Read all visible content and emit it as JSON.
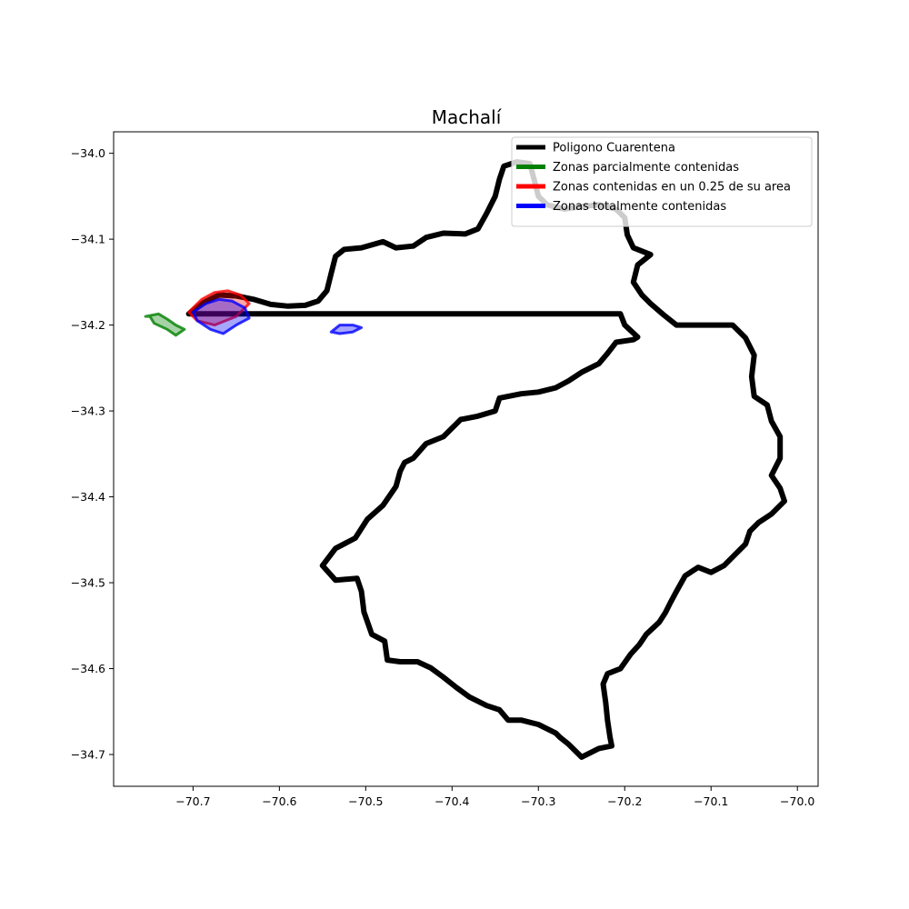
{
  "chart_data": {
    "type": "map",
    "title": "Machalí",
    "xlabel": "",
    "ylabel": "",
    "xlim": [
      -70.792,
      -69.976
    ],
    "ylim": [
      -34.737,
      -33.975
    ],
    "xticks": [
      -70.7,
      -70.6,
      -70.5,
      -70.4,
      -70.3,
      -70.2,
      -70.1,
      -70.0
    ],
    "xtick_labels": [
      "−70.7",
      "−70.6",
      "−70.5",
      "−70.4",
      "−70.3",
      "−70.2",
      "−70.1",
      "−70.0"
    ],
    "yticks": [
      -34.0,
      -34.1,
      -34.2,
      -34.3,
      -34.4,
      -34.5,
      -34.6,
      -34.7
    ],
    "ytick_labels": [
      "−34.0",
      "−34.1",
      "−34.2",
      "−34.3",
      "−34.4",
      "−34.5",
      "−34.6",
      "−34.7"
    ],
    "grid": false,
    "legend_position": "top-right",
    "legend": [
      {
        "label": "Poligono Cuarentena",
        "color": "#000000"
      },
      {
        "label": "Zonas parcialmente contenidas",
        "color": "#008000"
      },
      {
        "label": "Zonas contenidas en un 0.25 de su area",
        "color": "#ff0000"
      },
      {
        "label": "Zonas totalmente contenidas",
        "color": "#0000ff"
      }
    ],
    "series": [
      {
        "name": "Poligono Cuarentena",
        "color": "#000000",
        "type": "polygon",
        "lonlat": [
          [
            -70.705,
            -34.187
          ],
          [
            -70.69,
            -34.175
          ],
          [
            -70.67,
            -34.165
          ],
          [
            -70.65,
            -34.166
          ],
          [
            -70.63,
            -34.17
          ],
          [
            -70.61,
            -34.176
          ],
          [
            -70.59,
            -34.178
          ],
          [
            -70.57,
            -34.177
          ],
          [
            -70.555,
            -34.172
          ],
          [
            -70.545,
            -34.16
          ],
          [
            -70.54,
            -34.14
          ],
          [
            -70.535,
            -34.12
          ],
          [
            -70.525,
            -34.112
          ],
          [
            -70.505,
            -34.11
          ],
          [
            -70.48,
            -34.103
          ],
          [
            -70.465,
            -34.11
          ],
          [
            -70.445,
            -34.108
          ],
          [
            -70.43,
            -34.098
          ],
          [
            -70.41,
            -34.093
          ],
          [
            -70.385,
            -34.094
          ],
          [
            -70.37,
            -34.088
          ],
          [
            -70.36,
            -34.07
          ],
          [
            -70.35,
            -34.05
          ],
          [
            -70.345,
            -34.03
          ],
          [
            -70.34,
            -34.015
          ],
          [
            -70.325,
            -34.01
          ],
          [
            -70.31,
            -34.012
          ],
          [
            -70.305,
            -34.03
          ],
          [
            -70.3,
            -34.05
          ],
          [
            -70.29,
            -34.06
          ],
          [
            -70.27,
            -34.065
          ],
          [
            -70.25,
            -34.062
          ],
          [
            -70.23,
            -34.06
          ],
          [
            -70.21,
            -34.065
          ],
          [
            -70.2,
            -34.075
          ],
          [
            -70.197,
            -34.095
          ],
          [
            -70.19,
            -34.11
          ],
          [
            -70.17,
            -34.118
          ],
          [
            -70.185,
            -34.13
          ],
          [
            -70.19,
            -34.15
          ],
          [
            -70.18,
            -34.165
          ],
          [
            -70.17,
            -34.175
          ],
          [
            -70.155,
            -34.188
          ],
          [
            -70.14,
            -34.2
          ],
          [
            -70.115,
            -34.2
          ],
          [
            -70.095,
            -34.2
          ],
          [
            -70.075,
            -34.2
          ],
          [
            -70.06,
            -34.215
          ],
          [
            -70.05,
            -34.235
          ],
          [
            -70.053,
            -34.26
          ],
          [
            -70.05,
            -34.283
          ],
          [
            -70.035,
            -34.293
          ],
          [
            -70.03,
            -34.312
          ],
          [
            -70.02,
            -34.33
          ],
          [
            -70.02,
            -34.355
          ],
          [
            -70.03,
            -34.375
          ],
          [
            -70.02,
            -34.39
          ],
          [
            -70.015,
            -34.405
          ],
          [
            -70.03,
            -34.42
          ],
          [
            -70.045,
            -34.43
          ],
          [
            -70.055,
            -34.44
          ],
          [
            -70.06,
            -34.455
          ],
          [
            -70.07,
            -34.465
          ],
          [
            -70.085,
            -34.48
          ],
          [
            -70.1,
            -34.488
          ],
          [
            -70.115,
            -34.482
          ],
          [
            -70.13,
            -34.492
          ],
          [
            -70.14,
            -34.51
          ],
          [
            -70.147,
            -34.523
          ],
          [
            -70.153,
            -34.535
          ],
          [
            -70.16,
            -34.546
          ],
          [
            -70.175,
            -34.56
          ],
          [
            -70.183,
            -34.572
          ],
          [
            -70.193,
            -34.583
          ],
          [
            -70.205,
            -34.6
          ],
          [
            -70.22,
            -34.606
          ],
          [
            -70.225,
            -34.618
          ],
          [
            -70.222,
            -34.64
          ],
          [
            -70.22,
            -34.66
          ],
          [
            -70.217,
            -34.68
          ],
          [
            -70.215,
            -34.69
          ],
          [
            -70.23,
            -34.693
          ],
          [
            -70.25,
            -34.703
          ],
          [
            -70.255,
            -34.698
          ],
          [
            -70.265,
            -34.688
          ],
          [
            -70.275,
            -34.68
          ],
          [
            -70.28,
            -34.675
          ],
          [
            -70.3,
            -34.665
          ],
          [
            -70.32,
            -34.66
          ],
          [
            -70.335,
            -34.66
          ],
          [
            -70.345,
            -34.648
          ],
          [
            -70.36,
            -34.643
          ],
          [
            -70.38,
            -34.633
          ],
          [
            -70.395,
            -34.622
          ],
          [
            -70.41,
            -34.61
          ],
          [
            -70.425,
            -34.599
          ],
          [
            -70.44,
            -34.592
          ],
          [
            -70.46,
            -34.592
          ],
          [
            -70.475,
            -34.59
          ],
          [
            -70.478,
            -34.568
          ],
          [
            -70.493,
            -34.56
          ],
          [
            -70.502,
            -34.534
          ],
          [
            -70.505,
            -34.51
          ],
          [
            -70.51,
            -34.495
          ],
          [
            -70.535,
            -34.497
          ],
          [
            -70.55,
            -34.48
          ],
          [
            -70.535,
            -34.46
          ],
          [
            -70.512,
            -34.448
          ],
          [
            -70.498,
            -34.426
          ],
          [
            -70.48,
            -34.41
          ],
          [
            -70.465,
            -34.388
          ],
          [
            -70.46,
            -34.37
          ],
          [
            -70.455,
            -34.36
          ],
          [
            -70.445,
            -34.355
          ],
          [
            -70.43,
            -34.338
          ],
          [
            -70.41,
            -34.33
          ],
          [
            -70.39,
            -34.31
          ],
          [
            -70.37,
            -34.306
          ],
          [
            -70.35,
            -34.3
          ],
          [
            -70.345,
            -34.285
          ],
          [
            -70.32,
            -34.28
          ],
          [
            -70.3,
            -34.278
          ],
          [
            -70.28,
            -34.273
          ],
          [
            -70.265,
            -34.265
          ],
          [
            -70.25,
            -34.255
          ],
          [
            -70.23,
            -34.245
          ],
          [
            -70.22,
            -34.233
          ],
          [
            -70.21,
            -34.22
          ],
          [
            -70.19,
            -34.217
          ],
          [
            -70.185,
            -34.214
          ],
          [
            -70.2,
            -34.2
          ],
          [
            -70.205,
            -34.187
          ]
        ]
      },
      {
        "name": "Zonas parcialmente contenidas",
        "color": "#008000",
        "type": "zones",
        "lonlat": [
          [
            -70.755,
            -34.19
          ],
          [
            -70.74,
            -34.187
          ],
          [
            -70.73,
            -34.193
          ],
          [
            -70.72,
            -34.2
          ],
          [
            -70.71,
            -34.205
          ],
          [
            -70.72,
            -34.212
          ],
          [
            -70.73,
            -34.205
          ],
          [
            -70.745,
            -34.198
          ],
          [
            -70.75,
            -34.19
          ]
        ]
      },
      {
        "name": "Zonas contenidas en un 0.25 de su area",
        "color": "#ff0000",
        "type": "zones",
        "lonlat": [
          [
            -70.705,
            -34.185
          ],
          [
            -70.69,
            -34.17
          ],
          [
            -70.675,
            -34.162
          ],
          [
            -70.66,
            -34.16
          ],
          [
            -70.645,
            -34.165
          ],
          [
            -70.635,
            -34.175
          ],
          [
            -70.65,
            -34.19
          ],
          [
            -70.675,
            -34.2
          ],
          [
            -70.695,
            -34.195
          ],
          [
            -70.705,
            -34.185
          ]
        ]
      },
      {
        "name": "Zonas totalmente contenidas",
        "color": "#0000ff",
        "type": "zones",
        "lonlat": [
          [
            -70.7,
            -34.185
          ],
          [
            -70.685,
            -34.175
          ],
          [
            -70.67,
            -34.17
          ],
          [
            -70.655,
            -34.172
          ],
          [
            -70.64,
            -34.18
          ],
          [
            -70.635,
            -34.192
          ],
          [
            -70.65,
            -34.2
          ],
          [
            -70.665,
            -34.21
          ],
          [
            -70.68,
            -34.205
          ],
          [
            -70.695,
            -34.195
          ],
          [
            -70.7,
            -34.185
          ]
        ],
        "islands": [
          [
            [
              -70.54,
              -34.208
            ],
            [
              -70.53,
              -34.2
            ],
            [
              -70.515,
              -34.2
            ],
            [
              -70.505,
              -34.203
            ],
            [
              -70.515,
              -34.208
            ],
            [
              -70.53,
              -34.21
            ],
            [
              -70.54,
              -34.208
            ]
          ]
        ]
      }
    ]
  }
}
